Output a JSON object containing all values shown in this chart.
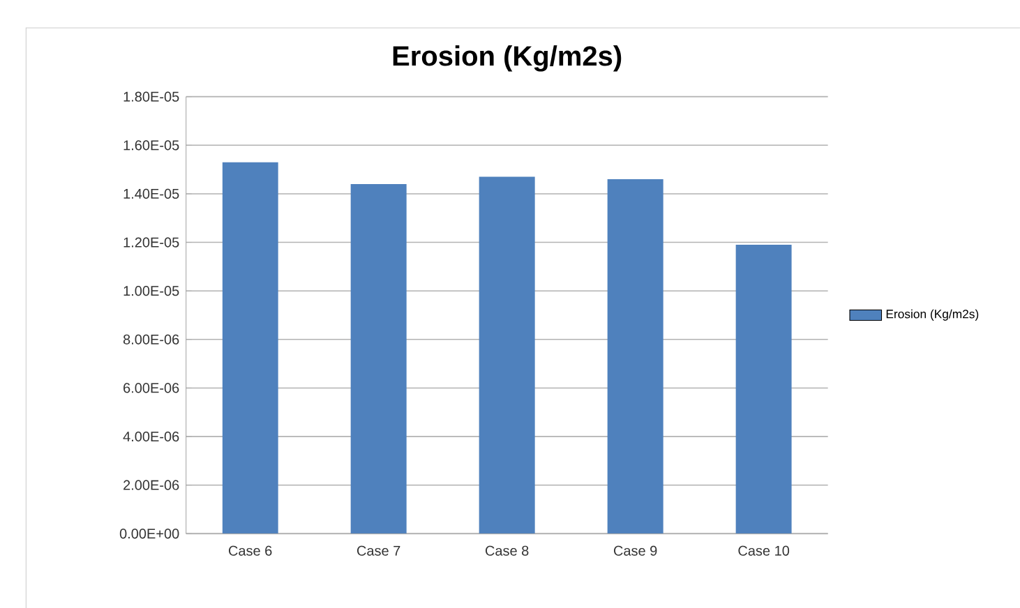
{
  "chart_data": {
    "type": "bar",
    "title": "Erosion (Kg/m2s)",
    "categories": [
      "Case 6",
      "Case 7",
      "Case 8",
      "Case 9",
      "Case 10"
    ],
    "series": [
      {
        "name": "Erosion (Kg/m2s)",
        "color": "#4f81bd",
        "values": [
          1.53e-05,
          1.44e-05,
          1.47e-05,
          1.46e-05,
          1.19e-05
        ]
      }
    ],
    "ylim": [
      0,
      1.8e-05
    ],
    "yticks": [
      {
        "value": 0,
        "label": "0.00E+00"
      },
      {
        "value": 2e-06,
        "label": "2.00E-06"
      },
      {
        "value": 4e-06,
        "label": "4.00E-06"
      },
      {
        "value": 6e-06,
        "label": "6.00E-06"
      },
      {
        "value": 8e-06,
        "label": "8.00E-06"
      },
      {
        "value": 1e-05,
        "label": "1.00E-05"
      },
      {
        "value": 1.2e-05,
        "label": "1.20E-05"
      },
      {
        "value": 1.4e-05,
        "label": "1.40E-05"
      },
      {
        "value": 1.6e-05,
        "label": "1.60E-05"
      },
      {
        "value": 1.8e-05,
        "label": "1.80E-05"
      }
    ],
    "grid": "y",
    "legend": "right"
  }
}
